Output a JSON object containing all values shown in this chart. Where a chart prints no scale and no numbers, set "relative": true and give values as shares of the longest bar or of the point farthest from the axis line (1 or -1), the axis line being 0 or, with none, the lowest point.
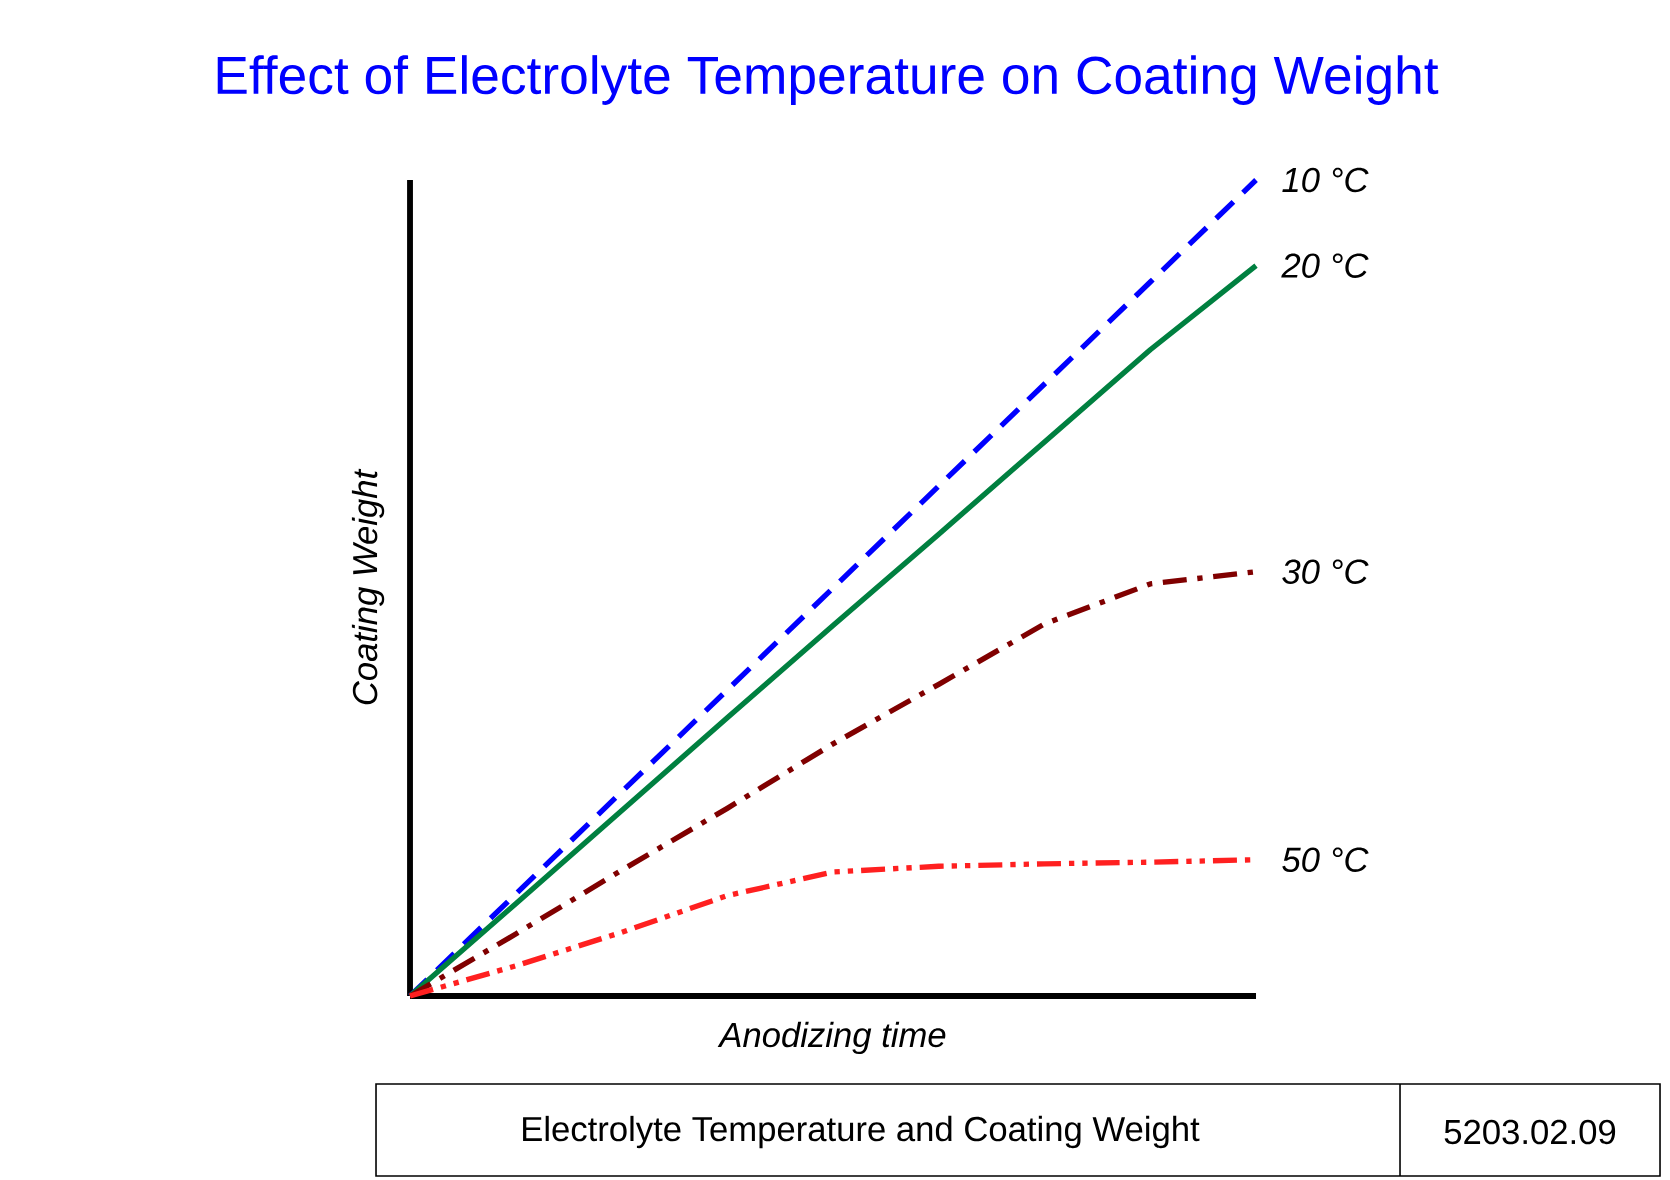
{
  "chart_data": {
    "type": "line",
    "title": "Effect of Electrolyte Temperature on Coating Weight",
    "xlabel": "Anodizing time",
    "ylabel": "Coating Weight",
    "relative": true,
    "categories": [
      null,
      null,
      null,
      null,
      null,
      null,
      null,
      null,
      null
    ],
    "series": [
      {
        "name": "10 °C",
        "color": "#0000ff",
        "line_style": "dashed",
        "values": [
          0,
          0.125,
          0.25,
          0.375,
          0.5,
          0.625,
          0.75,
          0.875,
          1
        ]
      },
      {
        "name": "20 °C",
        "color": "#008040",
        "line_style": "solid",
        "values": [
          0,
          0.113,
          0.227,
          0.341,
          0.454,
          0.566,
          0.679,
          0.792,
          0.895
        ]
      },
      {
        "name": "30 °C",
        "color": "#800000",
        "line_style": "dashdot",
        "values": [
          0,
          0.076,
          0.154,
          0.23,
          0.309,
          0.382,
          0.456,
          0.505,
          0.52
        ]
      },
      {
        "name": "50 °C",
        "color": "#ff2020",
        "line_style": "dashdotdot",
        "values": [
          0,
          0.037,
          0.078,
          0.123,
          0.152,
          0.159,
          0.162,
          0.164,
          0.167
        ]
      }
    ],
    "annotations": [
      "Electrolyte Temperature and Coating Weight",
      "5203.02.09"
    ]
  }
}
